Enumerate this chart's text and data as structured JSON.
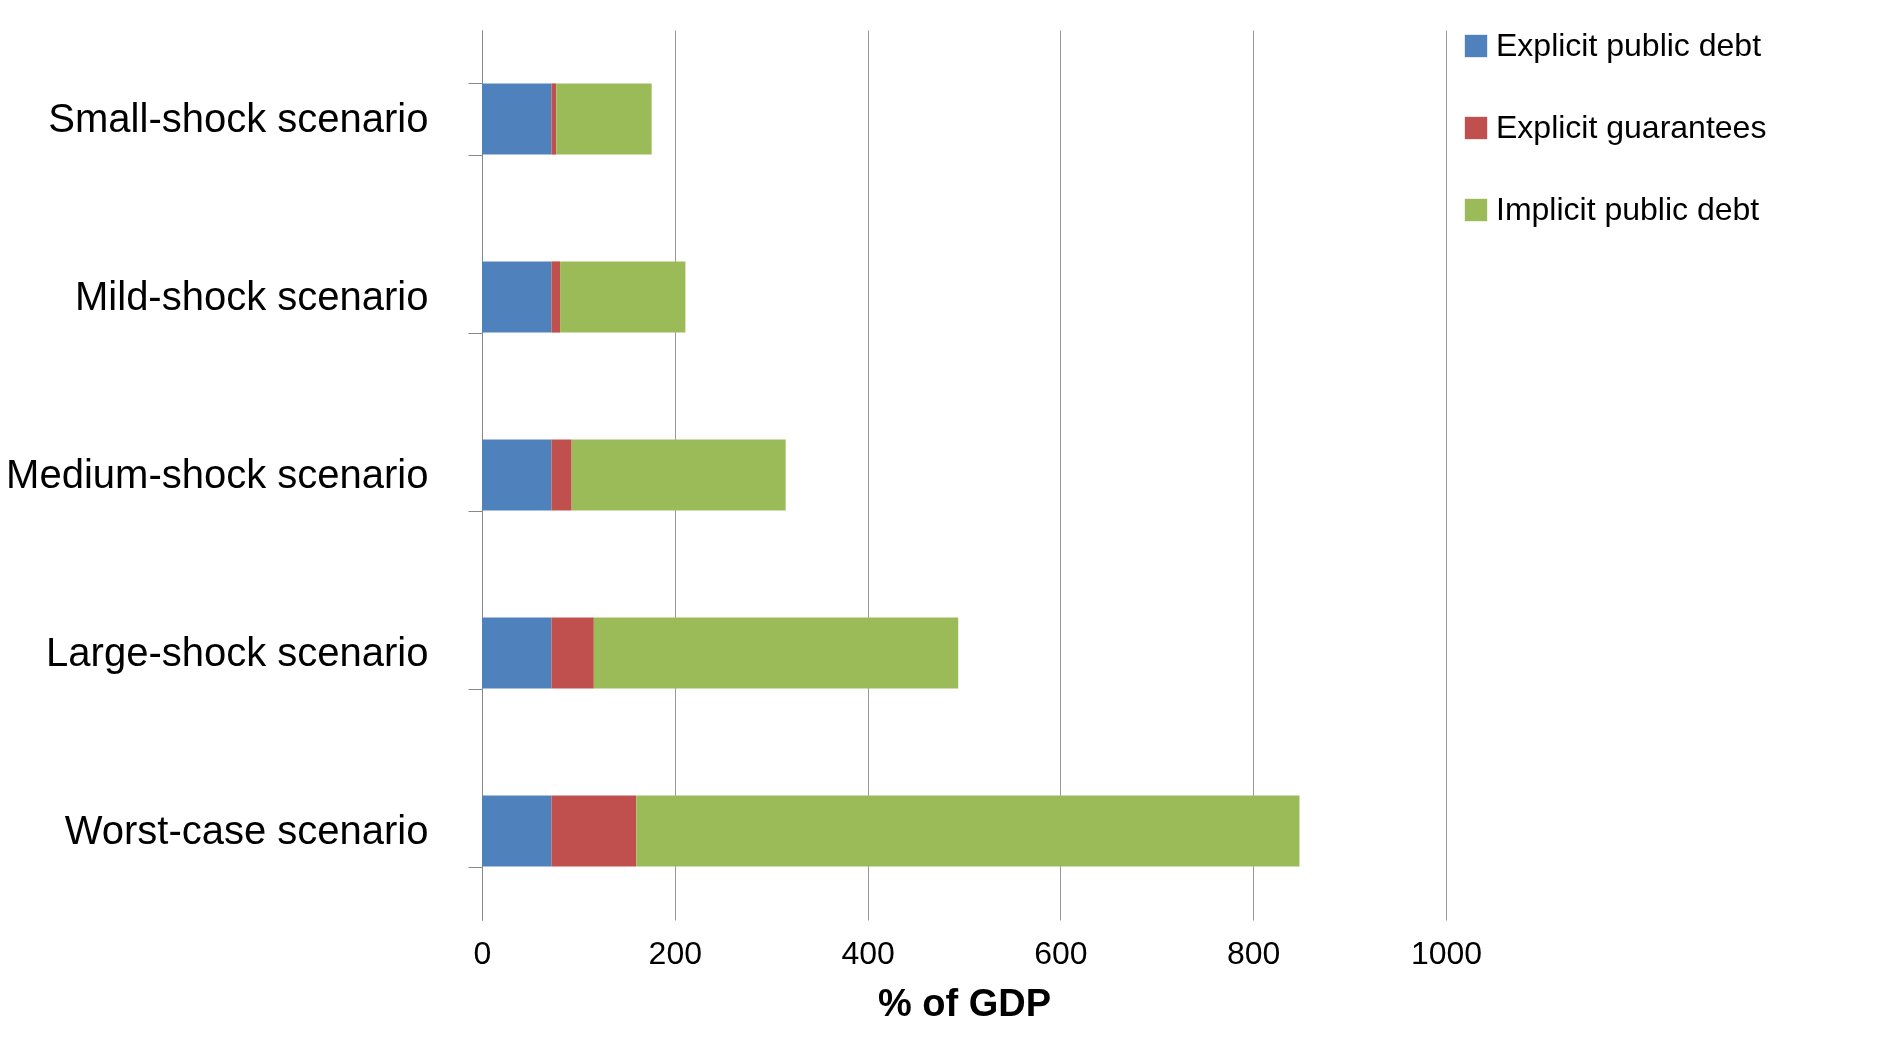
{
  "chart_data": {
    "type": "bar",
    "orientation": "horizontal",
    "stacked": true,
    "xlabel": "% of GDP",
    "categories": [
      "Small-shock scenario",
      "Mild-shock scenario",
      "Medium-shock scenario",
      "Large-shock scenario",
      "Worst-case scenario"
    ],
    "series": [
      {
        "name": "Explicit public debt",
        "color": "#4f81bd",
        "values": [
          72,
          72,
          72,
          72,
          72
        ]
      },
      {
        "name": "Explicit guarantees",
        "color": "#c0504d",
        "values": [
          5,
          9,
          21,
          44,
          88
        ]
      },
      {
        "name": "Implicit public debt",
        "color": "#9bbb59",
        "values": [
          99,
          130,
          222,
          378,
          688
        ]
      }
    ],
    "xlim": [
      0,
      1000
    ],
    "xticks": [
      0,
      200,
      400,
      600,
      800,
      1000
    ],
    "grid": "x",
    "legend": "right"
  }
}
